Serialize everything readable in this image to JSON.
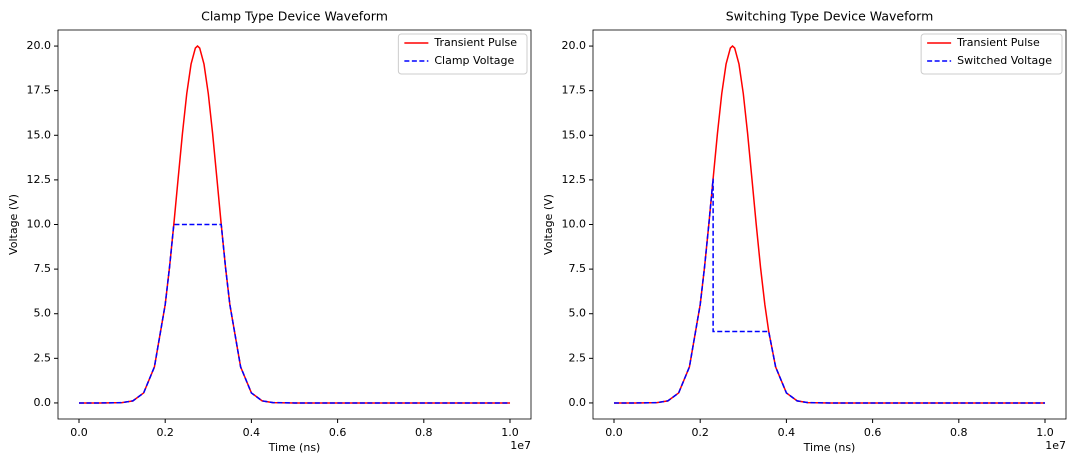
{
  "chart_data": [
    {
      "type": "line",
      "title": "Clamp Type Device Waveform",
      "xlabel": "Time (ns)",
      "ylabel": "Voltage (V)",
      "x_offset_label": "1e7",
      "x": [
        0,
        500000,
        1000000,
        1250000,
        1500000,
        1750000,
        2000000,
        2100000,
        2200000,
        2300000,
        2400000,
        2500000,
        2600000,
        2700000,
        2750000,
        2800000,
        2900000,
        3000000,
        3100000,
        3200000,
        3300000,
        3400000,
        3500000,
        3750000,
        4000000,
        4250000,
        4500000,
        5000000,
        6000000,
        8000000,
        10000000
      ],
      "series": [
        {
          "name": "Transient Pulse",
          "color": "#ff0000",
          "style": "solid",
          "values": [
            0,
            0,
            0.018,
            0.115,
            0.56,
            2.02,
            5.51,
            7.59,
            10.0,
            12.57,
            15.1,
            17.33,
            18.99,
            19.89,
            20.0,
            19.89,
            18.99,
            17.33,
            15.1,
            12.57,
            10.0,
            7.59,
            5.51,
            2.02,
            0.56,
            0.115,
            0.018,
            0,
            0,
            0,
            0
          ]
        },
        {
          "name": "Clamp Voltage",
          "color": "#0000ff",
          "style": "dashed",
          "values": [
            0,
            0,
            0.018,
            0.115,
            0.56,
            2.02,
            5.51,
            7.59,
            10.0,
            10.0,
            10.0,
            10.0,
            10.0,
            10.0,
            10.0,
            10.0,
            10.0,
            10.0,
            10.0,
            10.0,
            10.0,
            7.59,
            5.51,
            2.02,
            0.56,
            0.115,
            0.018,
            0,
            0,
            0,
            0
          ]
        }
      ],
      "xlim": [
        -487000,
        10487000
      ],
      "xticks": [
        {
          "value": 0,
          "label": "0.0"
        },
        {
          "value": 2000000,
          "label": "0.2"
        },
        {
          "value": 4000000,
          "label": "0.4"
        },
        {
          "value": 6000000,
          "label": "0.6"
        },
        {
          "value": 8000000,
          "label": "0.8"
        },
        {
          "value": 10000000,
          "label": "1.0"
        }
      ],
      "ylim": [
        -0.9,
        20.9
      ],
      "yticks": [
        {
          "value": 0,
          "label": "0.0"
        },
        2.5,
        {
          "value": 5,
          "label": "5.0"
        },
        7.5,
        {
          "value": 10,
          "label": "10.0"
        },
        12.5,
        {
          "value": 15,
          "label": "15.0"
        },
        17.5,
        {
          "value": 20,
          "label": "20.0"
        }
      ],
      "legend": "upper right",
      "grid": false
    },
    {
      "type": "line",
      "title": "Switching Type Device Waveform",
      "xlabel": "Time (ns)",
      "ylabel": "Voltage (V)",
      "x_offset_label": "1e7",
      "x": [
        0,
        500000,
        1000000,
        1250000,
        1500000,
        1750000,
        2000000,
        2100000,
        2200000,
        2300000,
        2300000,
        2400000,
        2500000,
        2600000,
        2700000,
        2750000,
        2800000,
        2900000,
        3000000,
        3100000,
        3200000,
        3300000,
        3400000,
        3500000,
        3590000,
        3750000,
        4000000,
        4250000,
        4500000,
        5000000,
        6000000,
        8000000,
        10000000
      ],
      "series": [
        {
          "name": "Transient Pulse",
          "color": "#ff0000",
          "style": "solid",
          "values": [
            0,
            0,
            0.018,
            0.115,
            0.56,
            2.02,
            5.51,
            7.59,
            10.0,
            12.57,
            12.57,
            15.1,
            17.33,
            18.99,
            19.89,
            20.0,
            19.89,
            18.99,
            17.33,
            15.1,
            12.57,
            10.0,
            7.59,
            5.51,
            4.0,
            2.02,
            0.56,
            0.115,
            0.018,
            0,
            0,
            0,
            0
          ]
        },
        {
          "name": "Switched Voltage",
          "color": "#0000ff",
          "style": "dashed",
          "values": [
            0,
            0,
            0.018,
            0.115,
            0.56,
            2.02,
            5.51,
            7.59,
            10.0,
            12.57,
            4.0,
            4.0,
            4.0,
            4.0,
            4.0,
            4.0,
            4.0,
            4.0,
            4.0,
            4.0,
            4.0,
            4.0,
            4.0,
            4.0,
            4.0,
            2.02,
            0.56,
            0.115,
            0.018,
            0,
            0,
            0,
            0
          ]
        }
      ],
      "xlim": [
        -487000,
        10487000
      ],
      "xticks": [
        {
          "value": 0,
          "label": "0.0"
        },
        {
          "value": 2000000,
          "label": "0.2"
        },
        {
          "value": 4000000,
          "label": "0.4"
        },
        {
          "value": 6000000,
          "label": "0.6"
        },
        {
          "value": 8000000,
          "label": "0.8"
        },
        {
          "value": 10000000,
          "label": "1.0"
        }
      ],
      "ylim": [
        -0.9,
        20.9
      ],
      "yticks": [
        {
          "value": 0,
          "label": "0.0"
        },
        2.5,
        {
          "value": 5,
          "label": "5.0"
        },
        7.5,
        {
          "value": 10,
          "label": "10.0"
        },
        12.5,
        {
          "value": 15,
          "label": "15.0"
        },
        17.5,
        {
          "value": 20,
          "label": "20.0"
        }
      ],
      "legend": "upper right",
      "grid": false
    }
  ]
}
